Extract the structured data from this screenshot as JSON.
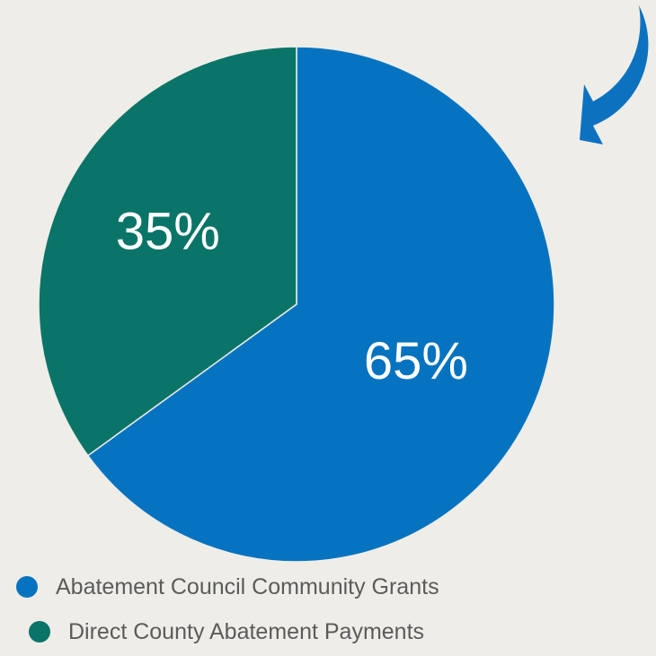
{
  "chart_data": {
    "type": "pie",
    "title": "",
    "slices": [
      {
        "name": "Abatement Council Community Grants",
        "value": 65,
        "label": "65%",
        "color": "#0573c0"
      },
      {
        "name": "Direct County Abatement Payments",
        "value": 35,
        "label": "35%",
        "color": "#0a7468"
      }
    ],
    "legend_position": "bottom-left"
  },
  "decoration": {
    "arrow_color": "#0c72c0",
    "arrow_icon": "curved-arrow-down-left-icon"
  },
  "legend": {
    "items": [
      {
        "label": "Abatement Council Community Grants",
        "color": "#0573c0"
      },
      {
        "label": "Direct County Abatement Payments",
        "color": "#0a7468"
      }
    ]
  }
}
